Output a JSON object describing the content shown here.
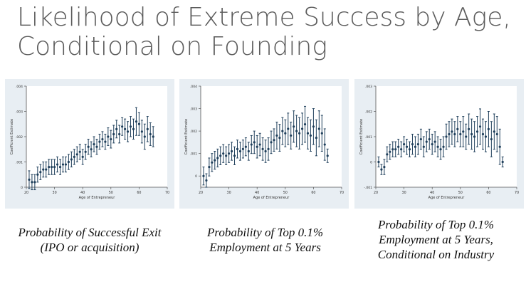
{
  "slide": {
    "title_line1": "Likelihood of Extreme Success by Age,",
    "title_line2": "Conditional on Founding"
  },
  "colors": {
    "marker": "#1f3f5b",
    "panel_bg": "#e8eef3",
    "plot_bg": "#ffffff"
  },
  "chart_data": [
    {
      "type": "scatter",
      "error_bars": true,
      "xlabel": "Age of Entrepreneur",
      "ylabel": "Coefficient Estimate",
      "xlim": [
        20,
        70
      ],
      "ylim": [
        0,
        0.004
      ],
      "xticks": [
        20,
        30,
        40,
        50,
        60,
        70
      ],
      "yticks": [
        0,
        0.001,
        0.002,
        0.003,
        0.004
      ],
      "ytick_labels": [
        "0",
        ".001",
        ".002",
        ".003",
        ".004"
      ],
      "caption_line1": "Probability of Successful Exit",
      "caption_line2": "(IPO or acquisition)",
      "caption_line3": "",
      "ages": [
        21,
        22,
        23,
        24,
        25,
        26,
        27,
        28,
        29,
        30,
        31,
        32,
        33,
        34,
        35,
        36,
        37,
        38,
        39,
        40,
        41,
        42,
        43,
        44,
        45,
        46,
        47,
        48,
        49,
        50,
        51,
        52,
        53,
        54,
        55,
        56,
        57,
        58,
        59,
        60,
        61,
        62,
        63,
        64,
        65
      ],
      "values": [
        0.0003,
        0.0002,
        0.0002,
        0.0005,
        0.0006,
        0.0007,
        0.0007,
        0.0008,
        0.0008,
        0.0008,
        0.0009,
        0.0008,
        0.0009,
        0.0009,
        0.001,
        0.0011,
        0.0012,
        0.0013,
        0.0014,
        0.0012,
        0.0014,
        0.0016,
        0.0015,
        0.0017,
        0.0016,
        0.0018,
        0.0019,
        0.0018,
        0.002,
        0.0019,
        0.0021,
        0.0023,
        0.0021,
        0.0024,
        0.0023,
        0.0022,
        0.0024,
        0.0023,
        0.0026,
        0.0025,
        0.0022,
        0.002,
        0.0023,
        0.0021,
        0.002
      ],
      "errors": [
        0.00035,
        0.0003,
        0.0003,
        0.0003,
        0.0003,
        0.0003,
        0.0003,
        0.0003,
        0.0003,
        0.0003,
        0.0003,
        0.0003,
        0.0003,
        0.0003,
        0.0003,
        0.0003,
        0.0003,
        0.0003,
        0.0003,
        0.0003,
        0.0003,
        0.0003,
        0.0003,
        0.0003,
        0.0003,
        0.0003,
        0.0003,
        0.0003,
        0.00035,
        0.00035,
        0.00035,
        0.00035,
        0.00035,
        0.00035,
        0.0004,
        0.0004,
        0.0004,
        0.0004,
        0.00055,
        0.00045,
        0.00045,
        0.0005,
        0.0005,
        0.00045,
        0.0004
      ]
    },
    {
      "type": "scatter",
      "error_bars": true,
      "xlabel": "Age of Entrepreneur",
      "ylabel": "Coefficient Estimate",
      "xlim": [
        20,
        70
      ],
      "ylim": [
        -0.0005,
        0.004
      ],
      "xticks": [
        20,
        30,
        40,
        50,
        60,
        70
      ],
      "yticks": [
        0,
        0.001,
        0.002,
        0.003,
        0.004
      ],
      "ytick_labels": [
        "0",
        ".001",
        ".002",
        ".003",
        ".004"
      ],
      "caption_line1": "Probability of Top 0.1%",
      "caption_line2": "Employment at 5 Years",
      "caption_line3": "",
      "ages": [
        21,
        22,
        23,
        24,
        25,
        26,
        27,
        28,
        29,
        30,
        31,
        32,
        33,
        34,
        35,
        36,
        37,
        38,
        39,
        40,
        41,
        42,
        43,
        44,
        45,
        46,
        47,
        48,
        49,
        50,
        51,
        52,
        53,
        54,
        55,
        56,
        57,
        58,
        59,
        60,
        61,
        62,
        63,
        64,
        65
      ],
      "values": [
        0.0,
        -0.0002,
        0.0004,
        0.0006,
        0.0007,
        0.0008,
        0.0009,
        0.001,
        0.0009,
        0.001,
        0.0011,
        0.0009,
        0.0012,
        0.0011,
        0.0012,
        0.0013,
        0.0011,
        0.0014,
        0.0015,
        0.0013,
        0.0014,
        0.0012,
        0.0011,
        0.0012,
        0.0015,
        0.0016,
        0.0018,
        0.0017,
        0.002,
        0.0019,
        0.0021,
        0.0018,
        0.0022,
        0.002,
        0.0019,
        0.0021,
        0.0023,
        0.0019,
        0.0018,
        0.0022,
        0.0017,
        0.0021,
        0.0019,
        0.0014,
        0.0009
      ],
      "errors": [
        0.0004,
        0.0003,
        0.0004,
        0.0004,
        0.0004,
        0.0004,
        0.0004,
        0.0004,
        0.0004,
        0.0004,
        0.0004,
        0.0004,
        0.0004,
        0.0004,
        0.0004,
        0.0004,
        0.0004,
        0.0004,
        0.0005,
        0.0005,
        0.0005,
        0.0005,
        0.0005,
        0.0005,
        0.0005,
        0.0005,
        0.0006,
        0.0006,
        0.0006,
        0.0006,
        0.0007,
        0.0006,
        0.0007,
        0.0007,
        0.0007,
        0.0007,
        0.0008,
        0.0007,
        0.0007,
        0.0008,
        0.0008,
        0.0008,
        0.0008,
        0.0007,
        0.0003
      ]
    },
    {
      "type": "scatter",
      "error_bars": true,
      "xlabel": "Age of Entrepreneur",
      "ylabel": "Coefficient Estimate",
      "xlim": [
        20,
        70
      ],
      "ylim": [
        -0.001,
        0.003
      ],
      "xticks": [
        20,
        30,
        40,
        50,
        60,
        70
      ],
      "yticks": [
        -0.001,
        0,
        0.001,
        0.002,
        0.003
      ],
      "ytick_labels": [
        "-.001",
        "0",
        ".001",
        ".002",
        ".003"
      ],
      "caption_line1": "Probability of Top 0.1%",
      "caption_line2": "Employment at 5 Years,",
      "caption_line3": "Conditional on Industry",
      "ages": [
        21,
        22,
        23,
        24,
        25,
        26,
        27,
        28,
        29,
        30,
        31,
        32,
        33,
        34,
        35,
        36,
        37,
        38,
        39,
        40,
        41,
        42,
        43,
        44,
        45,
        46,
        47,
        48,
        49,
        50,
        51,
        52,
        53,
        54,
        55,
        56,
        57,
        58,
        59,
        60,
        61,
        62,
        63,
        64,
        65
      ],
      "values": [
        0.0,
        -0.0003,
        -0.0002,
        0.0003,
        0.0004,
        0.0005,
        0.0005,
        0.0006,
        0.0005,
        0.0007,
        0.0006,
        0.0005,
        0.0007,
        0.0006,
        0.0007,
        0.0009,
        0.0006,
        0.0008,
        0.0009,
        0.0007,
        0.0008,
        0.0006,
        0.0005,
        0.0006,
        0.001,
        0.0011,
        0.0012,
        0.0011,
        0.0013,
        0.0011,
        0.0012,
        0.001,
        0.0013,
        0.0011,
        0.001,
        0.0012,
        0.0014,
        0.0011,
        0.001,
        0.0013,
        0.0009,
        0.0012,
        0.0011,
        0.0006,
        0.0
      ],
      "errors": [
        0.0002,
        0.0002,
        0.0003,
        0.0003,
        0.0003,
        0.0003,
        0.0003,
        0.0003,
        0.0003,
        0.0003,
        0.0003,
        0.0003,
        0.0004,
        0.0004,
        0.0004,
        0.0004,
        0.0004,
        0.0004,
        0.0004,
        0.0004,
        0.0004,
        0.0004,
        0.0004,
        0.0004,
        0.0005,
        0.0005,
        0.0005,
        0.0005,
        0.0005,
        0.0005,
        0.0006,
        0.0005,
        0.0006,
        0.0006,
        0.0006,
        0.0006,
        0.0007,
        0.0006,
        0.0006,
        0.0007,
        0.0007,
        0.0007,
        0.0007,
        0.0007,
        0.0002
      ]
    }
  ]
}
